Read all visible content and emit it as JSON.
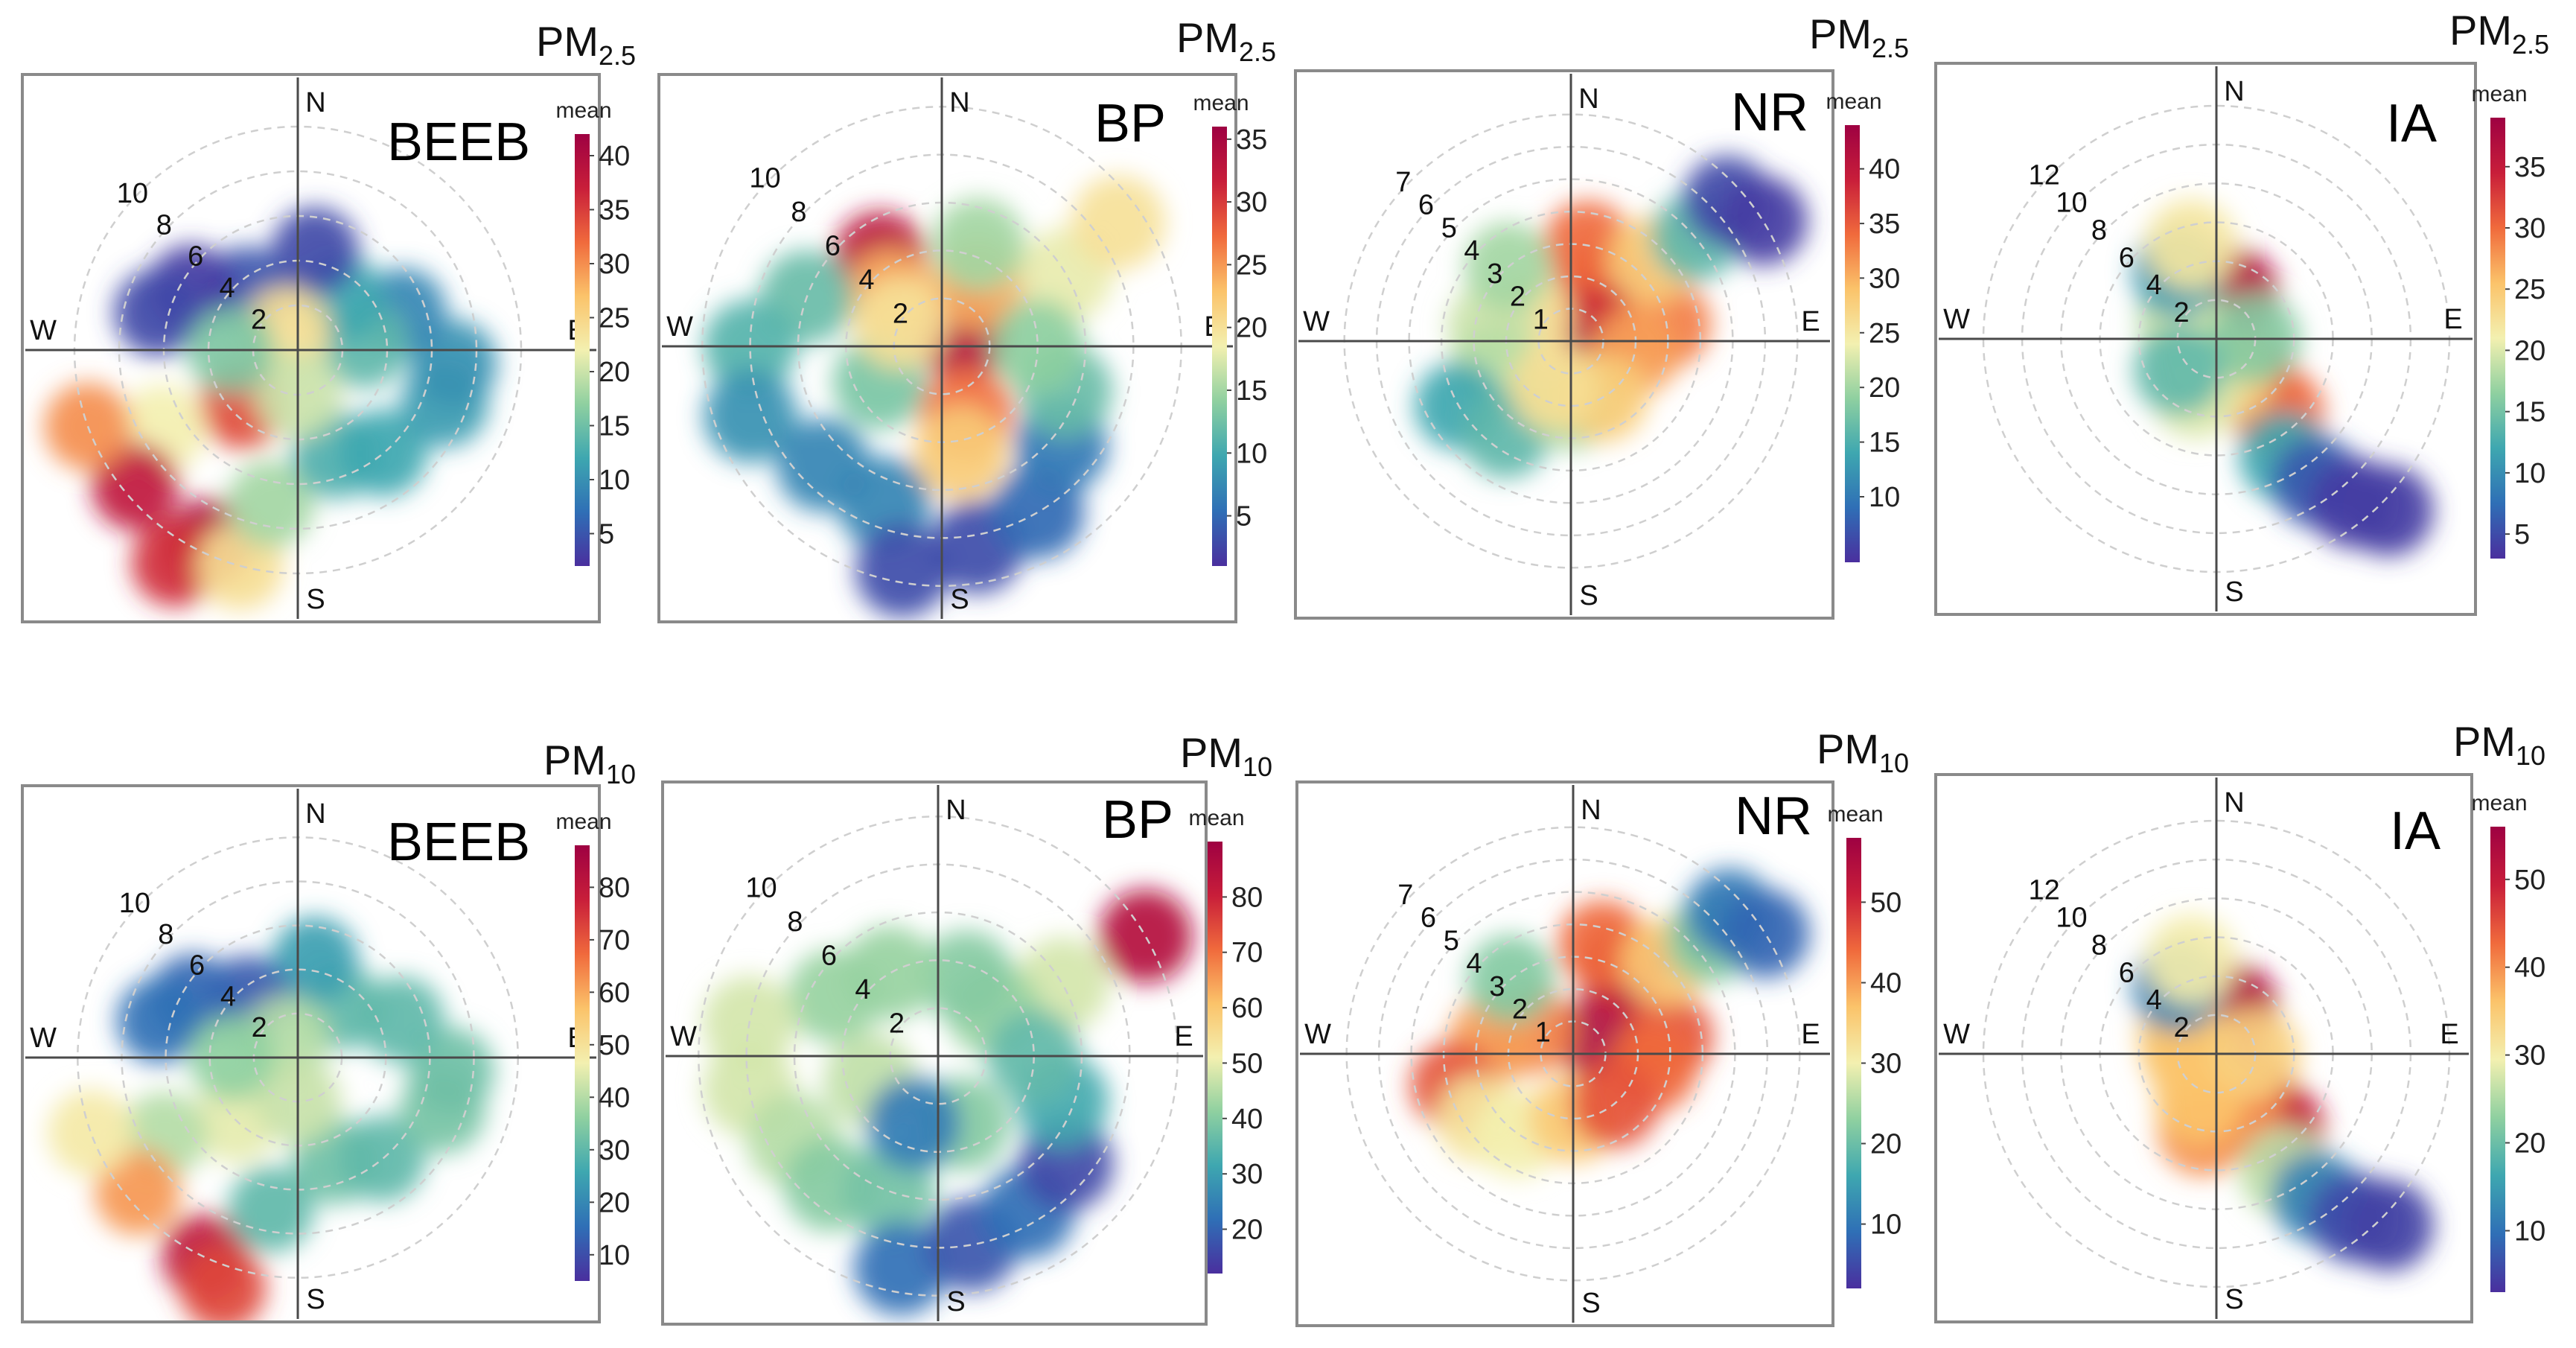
{
  "figure": {
    "pollutant_rows": [
      {
        "prefix": "PM",
        "subscript": "2.5"
      },
      {
        "prefix": "PM",
        "subscript": "10"
      }
    ],
    "compass": {
      "north": "N",
      "south": "S",
      "east": "E",
      "west": "W"
    },
    "colorbar_label": "mean",
    "colorscale": [
      "#4a2f9e",
      "#2f6fb6",
      "#3ea7b0",
      "#8fd0a0",
      "#f3f0b0",
      "#fbc36a",
      "#f06a3c",
      "#c81e3a",
      "#9e0142"
    ]
  },
  "chart_data": [
    {
      "type": "polar-heatmap",
      "site": "BEEB",
      "pollutant": "PM2.5",
      "radial_ticks": [
        "2",
        "4",
        "6",
        "8",
        "10"
      ],
      "colorbar_ticks": [
        5,
        10,
        15,
        20,
        25,
        30,
        35,
        40
      ],
      "colorbar_range": [
        2,
        42
      ],
      "blobs": [
        {
          "dir": 225,
          "ws": 3.5,
          "value": 34
        },
        {
          "dir": 240,
          "ws": 7,
          "value": 22
        },
        {
          "dir": 230,
          "ws": 9.5,
          "value": 38
        },
        {
          "dir": 205,
          "ws": 9.5,
          "value": 40
        },
        {
          "dir": 210,
          "ws": 11,
          "value": 36
        },
        {
          "dir": 195,
          "ws": 10,
          "value": 24
        },
        {
          "dir": 190,
          "ws": 7,
          "value": 18
        },
        {
          "dir": 250,
          "ws": 10,
          "value": 30
        },
        {
          "dir": 160,
          "ws": 5,
          "value": 13
        },
        {
          "dir": 140,
          "ws": 6,
          "value": 12
        },
        {
          "dir": 110,
          "ws": 7,
          "value": 11
        },
        {
          "dir": 95,
          "ws": 7,
          "value": 10
        },
        {
          "dir": 70,
          "ws": 5,
          "value": 9
        },
        {
          "dir": 85,
          "ws": 3,
          "value": 14
        },
        {
          "dir": 40,
          "ws": 3,
          "value": 12
        },
        {
          "dir": 10,
          "ws": 4.5,
          "value": 4
        },
        {
          "dir": 320,
          "ws": 3.5,
          "value": 5
        },
        {
          "dir": 300,
          "ws": 5.5,
          "value": 3
        },
        {
          "dir": 285,
          "ws": 6.5,
          "value": 4
        },
        {
          "dir": 330,
          "ws": 1,
          "value": 24
        },
        {
          "dir": 180,
          "ws": 2,
          "value": 20
        },
        {
          "dir": 270,
          "ws": 3,
          "value": 16
        }
      ]
    },
    {
      "type": "polar-heatmap",
      "site": "BP",
      "pollutant": "PM2.5",
      "radial_ticks": [
        "2",
        "4",
        "6",
        "8",
        "10"
      ],
      "colorbar_ticks": [
        5,
        10,
        15,
        20,
        25,
        30,
        35
      ],
      "colorbar_range": [
        1,
        36
      ],
      "blobs": [
        {
          "dir": 60,
          "ws": 1,
          "value": 34
        },
        {
          "dir": 30,
          "ws": 3,
          "value": 24
        },
        {
          "dir": 160,
          "ws": 3,
          "value": 27
        },
        {
          "dir": 170,
          "ws": 4.5,
          "value": 22
        },
        {
          "dir": 60,
          "ws": 6,
          "value": 18
        },
        {
          "dir": 55,
          "ws": 9,
          "value": 20
        },
        {
          "dir": 20,
          "ws": 4.5,
          "value": 15
        },
        {
          "dir": 325,
          "ws": 4.5,
          "value": 33
        },
        {
          "dir": 315,
          "ws": 3,
          "value": 24
        },
        {
          "dir": 290,
          "ws": 6,
          "value": 12
        },
        {
          "dir": 270,
          "ws": 8,
          "value": 11
        },
        {
          "dir": 250,
          "ws": 8.5,
          "value": 8
        },
        {
          "dir": 225,
          "ws": 7,
          "value": 7
        },
        {
          "dir": 200,
          "ws": 7,
          "value": 7
        },
        {
          "dir": 190,
          "ws": 9.5,
          "value": 3
        },
        {
          "dir": 170,
          "ws": 8.5,
          "value": 3
        },
        {
          "dir": 150,
          "ws": 8,
          "value": 5
        },
        {
          "dir": 130,
          "ws": 6.5,
          "value": 6
        },
        {
          "dir": 110,
          "ws": 5.5,
          "value": 12
        },
        {
          "dir": 240,
          "ws": 3,
          "value": 13
        },
        {
          "dir": 300,
          "ws": 2,
          "value": 20
        },
        {
          "dir": 90,
          "ws": 4,
          "value": 14
        }
      ]
    },
    {
      "type": "polar-heatmap",
      "site": "NR",
      "pollutant": "PM2.5",
      "radial_ticks": [
        "1",
        "2",
        "3",
        "4",
        "5",
        "6",
        "7"
      ],
      "colorbar_ticks": [
        10,
        15,
        20,
        25,
        30,
        35,
        40
      ],
      "colorbar_range": [
        4,
        44
      ],
      "blobs": [
        {
          "dir": 60,
          "ws": 1,
          "value": 42
        },
        {
          "dir": 30,
          "ws": 2,
          "value": 38
        },
        {
          "dir": 10,
          "ws": 3,
          "value": 34
        },
        {
          "dir": 80,
          "ws": 3,
          "value": 33
        },
        {
          "dir": 100,
          "ws": 2,
          "value": 31
        },
        {
          "dir": 45,
          "ws": 3.5,
          "value": 28
        },
        {
          "dir": 50,
          "ws": 5,
          "value": 16
        },
        {
          "dir": 48,
          "ws": 6.5,
          "value": 6
        },
        {
          "dir": 58,
          "ws": 7,
          "value": 5
        },
        {
          "dir": 300,
          "ws": 1.5,
          "value": 26
        },
        {
          "dir": 280,
          "ws": 2.5,
          "value": 22
        },
        {
          "dir": 250,
          "ws": 2.5,
          "value": 21
        },
        {
          "dir": 240,
          "ws": 4,
          "value": 14
        },
        {
          "dir": 215,
          "ws": 3.5,
          "value": 16
        },
        {
          "dir": 180,
          "ws": 2,
          "value": 20
        },
        {
          "dir": 150,
          "ws": 2,
          "value": 28
        },
        {
          "dir": 320,
          "ws": 3,
          "value": 20
        },
        {
          "dir": 200,
          "ws": 1.5,
          "value": 26
        }
      ]
    },
    {
      "type": "polar-heatmap",
      "site": "IA",
      "pollutant": "PM2.5",
      "radial_ticks": [
        "2",
        "4",
        "6",
        "8",
        "10",
        "12"
      ],
      "colorbar_ticks": [
        5,
        10,
        15,
        20,
        25,
        30,
        35
      ],
      "colorbar_range": [
        3,
        39
      ],
      "blobs": [
        {
          "dir": 20,
          "ws": 2.5,
          "value": 37
        },
        {
          "dir": 140,
          "ws": 3,
          "value": 33
        },
        {
          "dir": 140,
          "ws": 5,
          "value": 30
        },
        {
          "dir": 160,
          "ws": 2,
          "value": 24
        },
        {
          "dir": 200,
          "ws": 3,
          "value": 20
        },
        {
          "dir": 300,
          "ws": 2,
          "value": 17
        },
        {
          "dir": 270,
          "ws": 1.5,
          "value": 20
        },
        {
          "dir": 330,
          "ws": 4,
          "value": 11
        },
        {
          "dir": 345,
          "ws": 5,
          "value": 22
        },
        {
          "dir": 150,
          "ws": 7,
          "value": 12
        },
        {
          "dir": 145,
          "ws": 9,
          "value": 6
        },
        {
          "dir": 140,
          "ws": 11,
          "value": 4
        },
        {
          "dir": 135,
          "ws": 12.5,
          "value": 4
        },
        {
          "dir": 90,
          "ws": 2,
          "value": 16
        },
        {
          "dir": 230,
          "ws": 2.5,
          "value": 14
        }
      ]
    },
    {
      "type": "polar-heatmap",
      "site": "BEEB",
      "pollutant": "PM10",
      "radial_ticks": [
        "2",
        "4",
        "6",
        "8",
        "10"
      ],
      "colorbar_ticks": [
        10,
        20,
        30,
        40,
        50,
        60,
        70,
        80
      ],
      "colorbar_range": [
        5,
        88
      ],
      "blobs": [
        {
          "dir": 225,
          "ws": 4,
          "value": 45
        },
        {
          "dir": 240,
          "ws": 7,
          "value": 40
        },
        {
          "dir": 230,
          "ws": 9.5,
          "value": 62
        },
        {
          "dir": 205,
          "ws": 10,
          "value": 80
        },
        {
          "dir": 198,
          "ws": 11,
          "value": 72
        },
        {
          "dir": 190,
          "ws": 7,
          "value": 30
        },
        {
          "dir": 250,
          "ws": 10,
          "value": 48
        },
        {
          "dir": 160,
          "ws": 5,
          "value": 32
        },
        {
          "dir": 140,
          "ws": 6,
          "value": 30
        },
        {
          "dir": 110,
          "ws": 7,
          "value": 33
        },
        {
          "dir": 95,
          "ws": 7,
          "value": 32
        },
        {
          "dir": 70,
          "ws": 5,
          "value": 30
        },
        {
          "dir": 40,
          "ws": 3,
          "value": 30
        },
        {
          "dir": 10,
          "ws": 4.5,
          "value": 24
        },
        {
          "dir": 320,
          "ws": 3.5,
          "value": 12
        },
        {
          "dir": 300,
          "ws": 5.5,
          "value": 14
        },
        {
          "dir": 285,
          "ws": 6.5,
          "value": 16
        },
        {
          "dir": 330,
          "ws": 1,
          "value": 40
        },
        {
          "dir": 180,
          "ws": 2,
          "value": 42
        },
        {
          "dir": 270,
          "ws": 3,
          "value": 36
        }
      ]
    },
    {
      "type": "polar-heatmap",
      "site": "BP",
      "pollutant": "PM10",
      "radial_ticks": [
        "2",
        "4",
        "6",
        "8",
        "10"
      ],
      "colorbar_ticks": [
        20,
        30,
        40,
        50,
        60,
        70,
        80
      ],
      "colorbar_range": [
        12,
        90
      ],
      "blobs": [
        {
          "dir": 60,
          "ws": 10,
          "value": 85
        },
        {
          "dir": 60,
          "ws": 6,
          "value": 48
        },
        {
          "dir": 50,
          "ws": 3,
          "value": 42
        },
        {
          "dir": 20,
          "ws": 3.5,
          "value": 40
        },
        {
          "dir": 330,
          "ws": 4,
          "value": 42
        },
        {
          "dir": 300,
          "ws": 5,
          "value": 42
        },
        {
          "dir": 280,
          "ws": 8,
          "value": 48
        },
        {
          "dir": 260,
          "ws": 8,
          "value": 48
        },
        {
          "dir": 240,
          "ws": 7,
          "value": 45
        },
        {
          "dir": 220,
          "ws": 7,
          "value": 40
        },
        {
          "dir": 200,
          "ws": 6,
          "value": 38
        },
        {
          "dir": 190,
          "ws": 9,
          "value": 22
        },
        {
          "dir": 170,
          "ws": 8,
          "value": 18
        },
        {
          "dir": 150,
          "ws": 7.5,
          "value": 22
        },
        {
          "dir": 130,
          "ws": 7,
          "value": 16
        },
        {
          "dir": 110,
          "ws": 5.5,
          "value": 32
        },
        {
          "dir": 90,
          "ws": 4,
          "value": 36
        },
        {
          "dir": 160,
          "ws": 3,
          "value": 40
        },
        {
          "dir": 250,
          "ws": 3,
          "value": 46
        },
        {
          "dir": 200,
          "ws": 3,
          "value": 24
        }
      ]
    },
    {
      "type": "polar-heatmap",
      "site": "NR",
      "pollutant": "PM10",
      "radial_ticks": [
        "1",
        "2",
        "3",
        "4",
        "5",
        "6",
        "7"
      ],
      "colorbar_ticks": [
        10,
        20,
        30,
        40,
        50
      ],
      "colorbar_range": [
        2,
        58
      ],
      "blobs": [
        {
          "dir": 60,
          "ws": 1,
          "value": 55
        },
        {
          "dir": 30,
          "ws": 3,
          "value": 52
        },
        {
          "dir": 15,
          "ws": 3.5,
          "value": 44
        },
        {
          "dir": 80,
          "ws": 3,
          "value": 46
        },
        {
          "dir": 100,
          "ws": 2.5,
          "value": 44
        },
        {
          "dir": 45,
          "ws": 4,
          "value": 36
        },
        {
          "dir": 50,
          "ws": 5.5,
          "value": 22
        },
        {
          "dir": 48,
          "ws": 6.5,
          "value": 10
        },
        {
          "dir": 58,
          "ws": 7,
          "value": 8
        },
        {
          "dir": 300,
          "ws": 1.5,
          "value": 42
        },
        {
          "dir": 280,
          "ws": 2.5,
          "value": 40
        },
        {
          "dir": 255,
          "ws": 3.8,
          "value": 46
        },
        {
          "dir": 235,
          "ws": 3.5,
          "value": 32
        },
        {
          "dir": 215,
          "ws": 3,
          "value": 30
        },
        {
          "dir": 180,
          "ws": 2,
          "value": 36
        },
        {
          "dir": 140,
          "ws": 2,
          "value": 46
        },
        {
          "dir": 320,
          "ws": 3,
          "value": 22
        }
      ]
    },
    {
      "type": "polar-heatmap",
      "site": "IA",
      "pollutant": "PM10",
      "radial_ticks": [
        "2",
        "4",
        "6",
        "8",
        "10",
        "12"
      ],
      "colorbar_ticks": [
        10,
        20,
        30,
        40,
        50
      ],
      "colorbar_range": [
        3,
        56
      ],
      "blobs": [
        {
          "dir": 20,
          "ws": 2.5,
          "value": 53
        },
        {
          "dir": 140,
          "ws": 3,
          "value": 46
        },
        {
          "dir": 140,
          "ws": 5,
          "value": 50
        },
        {
          "dir": 160,
          "ws": 3,
          "value": 40
        },
        {
          "dir": 190,
          "ws": 4,
          "value": 40
        },
        {
          "dir": 200,
          "ws": 2.5,
          "value": 36
        },
        {
          "dir": 300,
          "ws": 2,
          "value": 34
        },
        {
          "dir": 270,
          "ws": 1.5,
          "value": 36
        },
        {
          "dir": 330,
          "ws": 4,
          "value": 12
        },
        {
          "dir": 345,
          "ws": 5,
          "value": 30
        },
        {
          "dir": 150,
          "ws": 7,
          "value": 26
        },
        {
          "dir": 145,
          "ws": 9,
          "value": 12
        },
        {
          "dir": 140,
          "ws": 11,
          "value": 6
        },
        {
          "dir": 135,
          "ws": 12.5,
          "value": 5
        },
        {
          "dir": 90,
          "ws": 2,
          "value": 34
        }
      ]
    }
  ]
}
